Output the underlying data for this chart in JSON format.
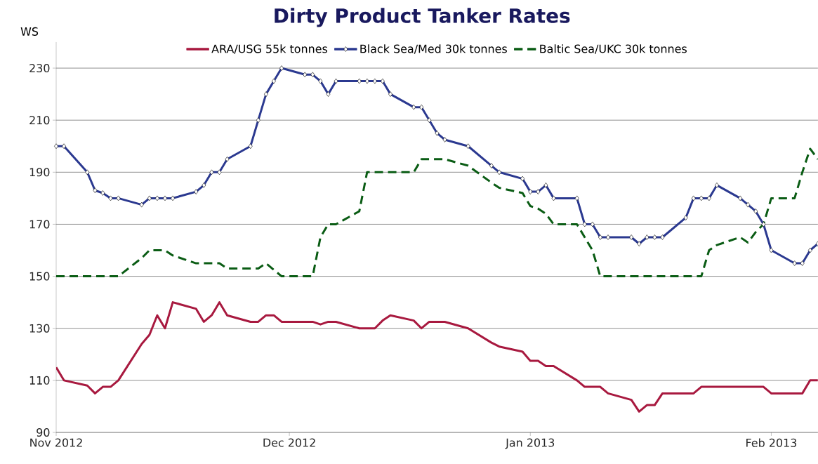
{
  "chart_data": {
    "type": "line",
    "title": "Dirty Product Tanker Rates",
    "ylabel": "WS",
    "x": [
      "2012-11-01",
      "2012-11-02",
      "2012-11-05",
      "2012-11-06",
      "2012-11-07",
      "2012-11-08",
      "2012-11-09",
      "2012-11-12",
      "2012-11-13",
      "2012-11-14",
      "2012-11-15",
      "2012-11-16",
      "2012-11-19",
      "2012-11-20",
      "2012-11-21",
      "2012-11-22",
      "2012-11-23",
      "2012-11-26",
      "2012-11-27",
      "2012-11-28",
      "2012-11-29",
      "2012-11-30",
      "2012-12-03",
      "2012-12-04",
      "2012-12-05",
      "2012-12-06",
      "2012-12-07",
      "2012-12-10",
      "2012-12-11",
      "2012-12-12",
      "2012-12-13",
      "2012-12-14",
      "2012-12-17",
      "2012-12-18",
      "2012-12-19",
      "2012-12-20",
      "2012-12-21",
      "2012-12-24",
      "2012-12-27",
      "2012-12-28",
      "2012-12-31",
      "2013-01-01",
      "2013-01-02",
      "2013-01-03",
      "2013-01-04",
      "2013-01-07",
      "2013-01-08",
      "2013-01-09",
      "2013-01-10",
      "2013-01-11",
      "2013-01-14",
      "2013-01-15",
      "2013-01-16",
      "2013-01-17",
      "2013-01-18",
      "2013-01-21",
      "2013-01-22",
      "2013-01-23",
      "2013-01-24",
      "2013-01-25",
      "2013-01-28",
      "2013-01-29",
      "2013-01-30",
      "2013-01-31",
      "2013-02-01",
      "2013-02-04",
      "2013-02-05",
      "2013-02-06",
      "2013-02-07"
    ],
    "series": [
      {
        "name": "ARA/USG 55k tonnes",
        "color": "#a8193f",
        "marker": "none",
        "line_style": "solid",
        "values": [
          115,
          110,
          108,
          105,
          107.5,
          107.5,
          110,
          124,
          127.5,
          135,
          130,
          140,
          137.5,
          132.5,
          135,
          140,
          135,
          132.5,
          132.5,
          135,
          135,
          132.5,
          132.5,
          132.5,
          131.5,
          132.5,
          132.5,
          130,
          130,
          130,
          133,
          135,
          133,
          130,
          132.5,
          132.5,
          132.5,
          130,
          124.5,
          123,
          121,
          117.5,
          117.5,
          115.5,
          115.5,
          110,
          107.5,
          107.5,
          107.5,
          105,
          102.5,
          98,
          100.5,
          100.5,
          105,
          105,
          105,
          107.5,
          107.5,
          107.5,
          107.5,
          107.5,
          107.5,
          107.5,
          105,
          105,
          105,
          110,
          110
        ]
      },
      {
        "name": "Black Sea/Med 30k tonnes",
        "color": "#2b3990",
        "marker": "diamond",
        "line_style": "solid",
        "values": [
          200,
          200,
          190,
          183,
          182,
          180,
          180,
          177.5,
          180,
          180,
          180,
          180,
          182.5,
          185,
          190,
          190,
          195,
          200,
          210,
          220,
          225,
          230,
          227.5,
          227.5,
          225,
          220,
          225,
          225,
          225,
          225,
          225,
          220,
          215,
          215,
          210,
          205,
          202.5,
          200,
          192.5,
          190,
          187.5,
          182.5,
          182.5,
          185,
          180,
          180,
          170,
          170,
          165,
          165,
          165,
          162.5,
          165,
          165,
          165,
          172.5,
          180,
          180,
          180,
          185,
          180,
          177.5,
          175,
          170,
          160,
          155,
          155,
          160,
          162.5
        ]
      },
      {
        "name": "Baltic Sea/UKC 30k tonnes",
        "color": "#0a5c14",
        "marker": "none",
        "line_style": "dashed",
        "values": [
          150,
          150,
          150,
          150,
          150,
          150,
          150,
          157,
          160,
          160,
          160,
          158,
          155,
          155,
          155,
          155,
          153,
          153,
          153,
          155,
          152.5,
          150,
          150,
          150,
          165,
          170,
          170,
          175,
          190,
          190,
          190,
          190,
          190,
          195,
          195,
          195,
          195,
          192.5,
          186,
          184,
          182,
          177,
          176,
          174,
          170,
          170,
          165,
          160,
          150,
          150,
          150,
          150,
          150,
          150,
          150,
          150,
          150,
          150,
          160,
          162,
          165,
          163,
          167,
          170,
          180,
          180,
          190,
          199,
          195
        ]
      }
    ],
    "xlim": [
      "2012-11-01",
      "2013-02-07"
    ],
    "xticks": [
      {
        "value": "2012-11-01",
        "label": "Nov 2012"
      },
      {
        "value": "2012-12-01",
        "label": "Dec 2012"
      },
      {
        "value": "2013-01-01",
        "label": "Jan 2013"
      },
      {
        "value": "2013-02-01",
        "label": "Feb 2013"
      }
    ],
    "ylim": [
      90,
      240
    ],
    "yticks": [
      90,
      110,
      130,
      150,
      170,
      190,
      210,
      230
    ],
    "grid": "y",
    "legend": "top"
  }
}
